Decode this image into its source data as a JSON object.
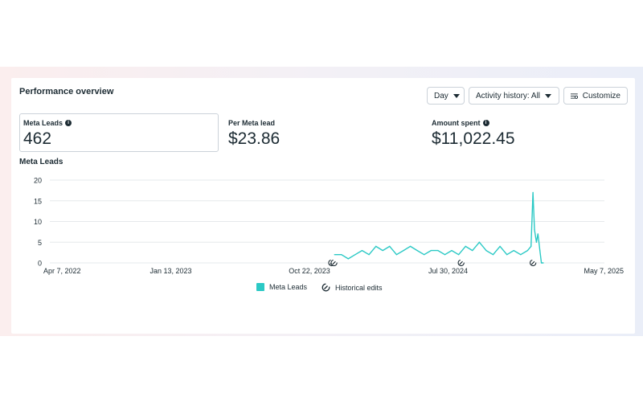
{
  "header": {
    "title": "Performance overview"
  },
  "controls": {
    "day_label": "Day",
    "activity_label": "Activity history: All",
    "customize_label": "Customize"
  },
  "metrics": [
    {
      "label": "Meta Leads",
      "value": "462",
      "info": true
    },
    {
      "label": "Per Meta lead",
      "value": "$23.86",
      "info": false
    },
    {
      "label": "Amount spent",
      "value": "$11,022.45",
      "info": true
    }
  ],
  "chart_title": "Meta Leads",
  "legend": {
    "series_label": "Meta Leads",
    "edits_label": "Historical edits"
  },
  "colors": {
    "series": "#2bc9c5",
    "grid": "#e6e9ec",
    "text": "#1c2b33"
  },
  "chart_data": {
    "type": "line",
    "title": "Meta Leads",
    "x_tick_labels": [
      "Apr 7, 2022",
      "Jan 13, 2023",
      "Oct 22, 2023",
      "Jul 30, 2024",
      "May 7, 2025"
    ],
    "y_tick_labels": [
      "0",
      "5",
      "10",
      "15",
      "20"
    ],
    "ylim": [
      0,
      20
    ],
    "xlim": [
      "2022-04-07",
      "2025-05-07"
    ],
    "grid": true,
    "legend_position": "bottom",
    "series": [
      {
        "name": "Meta Leads",
        "x": [
          "2023-11-06",
          "2023-11-20",
          "2023-12-04",
          "2023-12-18",
          "2024-01-01",
          "2024-01-15",
          "2024-01-29",
          "2024-02-12",
          "2024-02-26",
          "2024-03-11",
          "2024-03-25",
          "2024-04-08",
          "2024-04-22",
          "2024-05-06",
          "2024-05-20",
          "2024-06-03",
          "2024-06-17",
          "2024-07-01",
          "2024-07-15",
          "2024-07-29",
          "2024-08-12",
          "2024-08-26",
          "2024-09-09",
          "2024-09-23",
          "2024-10-07",
          "2024-10-21",
          "2024-11-04",
          "2024-11-18",
          "2024-12-02",
          "2024-12-09",
          "2024-12-13",
          "2024-12-16",
          "2024-12-20",
          "2024-12-23",
          "2024-12-27",
          "2024-12-30",
          "2025-01-03"
        ],
        "y": [
          2,
          2,
          1,
          2,
          3,
          2,
          4,
          3,
          4,
          2,
          3,
          4,
          3,
          2,
          3,
          3,
          2,
          3,
          2,
          4,
          3,
          5,
          3,
          2,
          4,
          2,
          3,
          2,
          3,
          4,
          17,
          8,
          5,
          7,
          3,
          0,
          0
        ]
      }
    ],
    "historical_edit_markers": [
      "2023-10-31",
      "2023-11-05",
      "2024-07-20",
      "2024-12-13"
    ]
  }
}
